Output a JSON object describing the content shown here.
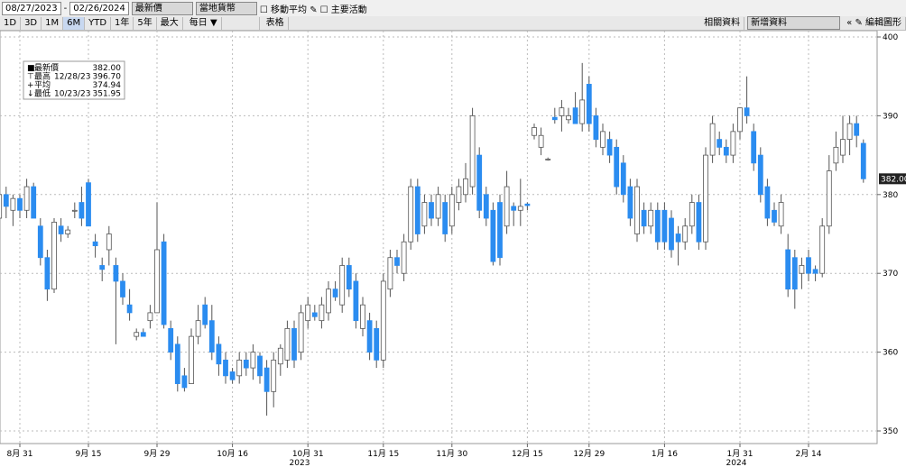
{
  "toolbar": {
    "start_date": "08/27/2023",
    "end_date": "02/26/2024",
    "field": "最新價",
    "currency": "當地貨幣",
    "moving_average": "移動平均",
    "events": "主要活動",
    "ranges": [
      "1D",
      "3D",
      "1M",
      "6M",
      "YTD",
      "1年",
      "5年",
      "最大"
    ],
    "frequency": "每日 ▼",
    "table": "表格",
    "related": "相關資料",
    "add_data": "新增資料",
    "edit": "編輯圖形"
  },
  "chart_data": {
    "type": "candlestick",
    "up_color": "#ffffff",
    "down_color": "#2b8cf0",
    "grid": true,
    "legend": [
      {
        "label": "最新價",
        "date": null,
        "value": "382.00"
      },
      {
        "label": "最高",
        "date": "12/28/23",
        "value": "396.70"
      },
      {
        "label": "平均",
        "date": null,
        "value": "374.94"
      },
      {
        "label": "最低",
        "date": "10/23/23",
        "value": "351.95"
      }
    ],
    "year_labels": [
      "2023",
      "2024"
    ],
    "categories": [
      null,
      null,
      null,
      "8月 31",
      null,
      null,
      null,
      null,
      null,
      null,
      null,
      null,
      null,
      "9月 15",
      null,
      null,
      null,
      null,
      null,
      null,
      null,
      null,
      null,
      "9月 29",
      null,
      null,
      null,
      null,
      null,
      null,
      null,
      null,
      null,
      null,
      "10月 16",
      null,
      null,
      null,
      null,
      null,
      null,
      null,
      null,
      null,
      null,
      "10月 31",
      null,
      null,
      null,
      null,
      null,
      null,
      null,
      null,
      null,
      null,
      "11月 15",
      null,
      null,
      null,
      null,
      null,
      null,
      null,
      null,
      null,
      "11月 30",
      null,
      null,
      null,
      null,
      null,
      null,
      null,
      null,
      null,
      null,
      "12月 15",
      null,
      null,
      null,
      null,
      null,
      null,
      null,
      null,
      "12月 29",
      null,
      null,
      null,
      null,
      null,
      null,
      null,
      null,
      null,
      null,
      "1月 16",
      null,
      null,
      null,
      null,
      null,
      null,
      null,
      null,
      null,
      null,
      "1月 31",
      null,
      null,
      null,
      null,
      null,
      null,
      null,
      null,
      null,
      "2月 14",
      null,
      null,
      null,
      null,
      null,
      null,
      null,
      null
    ],
    "open": [
      377,
      380,
      378,
      379.5,
      378,
      381,
      376,
      372,
      368,
      376,
      375,
      378,
      379,
      381.5,
      374,
      371,
      373,
      371,
      369,
      366,
      362,
      362.5,
      364,
      365,
      374,
      363,
      361,
      357,
      356,
      362,
      366,
      364,
      361,
      359,
      357.5,
      357,
      359,
      358,
      359.5,
      358,
      355,
      358.5,
      359,
      363,
      360,
      364,
      365,
      364,
      365,
      368,
      366,
      371,
      369,
      363,
      364,
      363,
      359,
      368,
      372,
      370,
      374,
      381,
      376,
      379,
      377,
      379,
      376,
      379,
      380,
      381,
      385,
      380,
      378,
      379,
      376,
      378.5,
      378,
      378.8,
      387.5,
      386,
      384.5,
      389.8,
      390,
      389.5,
      391,
      389,
      394,
      390,
      386,
      387,
      386,
      384,
      381,
      375,
      378,
      376,
      378,
      378,
      377,
      375,
      374,
      376,
      379,
      374,
      385,
      387,
      386,
      385,
      388,
      391,
      388,
      385,
      381,
      378,
      376,
      373,
      372,
      370,
      372,
      370.5,
      370,
      376,
      384,
      385,
      387,
      389,
      386.5
    ],
    "high": [
      381,
      381,
      380,
      380,
      382,
      381.5,
      377,
      373,
      377,
      377,
      376,
      379,
      381,
      382,
      375,
      372,
      376,
      372,
      370,
      368,
      363,
      363,
      366,
      379,
      375,
      364,
      362,
      358,
      363,
      366,
      367,
      366,
      362,
      360,
      358,
      360,
      360,
      361,
      360,
      359,
      360,
      361,
      364,
      364,
      366,
      367,
      366,
      367,
      369,
      369,
      372,
      372,
      370,
      367,
      365,
      364,
      370,
      373,
      373,
      375,
      382,
      382,
      380,
      380,
      381,
      380,
      381,
      382,
      384,
      391,
      386,
      381,
      379,
      380,
      383,
      379,
      382,
      379,
      389,
      388.5,
      384.7,
      391,
      392,
      391,
      393,
      396.7,
      395,
      391,
      389,
      388,
      387,
      385,
      382,
      382,
      379,
      379,
      379,
      379,
      378,
      376,
      377,
      380,
      380,
      386,
      390,
      388,
      387,
      389,
      391,
      395,
      389,
      386,
      382,
      379,
      380,
      375,
      373,
      372,
      373,
      371,
      377,
      385,
      388,
      390,
      390,
      390,
      387
    ],
    "low": [
      375,
      377,
      376,
      377,
      377,
      377,
      371,
      366.5,
      367.5,
      374,
      374.5,
      377,
      376,
      376,
      372,
      369,
      371,
      361,
      366,
      364,
      361.5,
      362,
      363,
      365,
      363,
      359,
      355,
      355,
      356,
      361,
      363,
      359,
      357,
      356,
      356,
      356,
      357,
      356.5,
      356,
      351.95,
      353,
      357,
      358,
      358,
      359,
      363,
      364,
      363,
      364,
      366.5,
      365,
      367,
      363,
      362,
      359,
      358,
      358,
      367,
      370,
      369,
      373,
      374,
      375,
      376,
      376,
      374,
      375,
      378,
      379,
      380,
      377,
      376,
      371,
      371,
      375,
      376,
      376,
      378,
      387,
      385,
      384.3,
      389,
      388,
      389,
      389,
      388,
      388,
      386,
      385,
      384,
      380,
      379,
      376,
      374,
      375,
      375,
      373,
      373,
      372,
      371,
      373,
      375,
      373,
      373,
      384,
      385,
      384,
      384,
      387,
      389,
      383,
      379,
      376,
      376,
      375,
      367,
      365.5,
      368,
      369,
      369,
      369.5,
      375,
      383,
      384,
      385,
      386,
      381.5
    ],
    "close": [
      380,
      378.5,
      379.5,
      378,
      381,
      377,
      372,
      368,
      376.5,
      375,
      375.5,
      378,
      377,
      376,
      373.5,
      370.5,
      375,
      369,
      367,
      365,
      362.5,
      362,
      365,
      373,
      363.5,
      360,
      356,
      355.5,
      362,
      364,
      363.5,
      360,
      358.5,
      357,
      356.5,
      359,
      358,
      360,
      357,
      355,
      359,
      360.5,
      363,
      359,
      365,
      366,
      364.5,
      366,
      368,
      367,
      371,
      368,
      364,
      366,
      360,
      359,
      369,
      372,
      371,
      374,
      381,
      375,
      379,
      377,
      380,
      375,
      380,
      381,
      382,
      390,
      378,
      377,
      371.5,
      372,
      381,
      378,
      378.5,
      378.6,
      388.5,
      387.5,
      384.5,
      389.5,
      391,
      390,
      389,
      392,
      389,
      387,
      388,
      385,
      381,
      380,
      377,
      381,
      376,
      378,
      374,
      374,
      373,
      374,
      376,
      379,
      374,
      385,
      389,
      386,
      385,
      388,
      391,
      390,
      384,
      380,
      377,
      376.5,
      379,
      368,
      368,
      371,
      370,
      370,
      376,
      383,
      386,
      387,
      389,
      387.5,
      382
    ],
    "ylim": [
      348.4,
      400.8
    ],
    "yticks": [
      350,
      360,
      370,
      380,
      390,
      400
    ]
  }
}
